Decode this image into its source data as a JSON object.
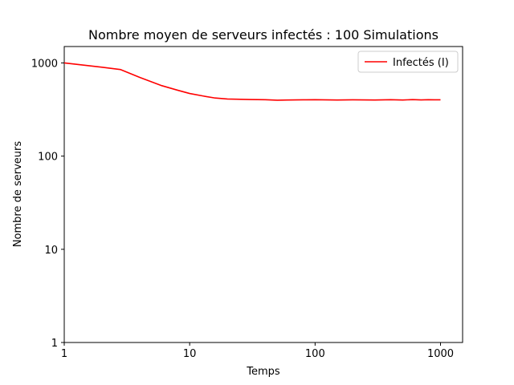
{
  "chart_data": {
    "type": "line",
    "title": "Nombre moyen de serveurs infectés : 100 Simulations",
    "xlabel": "Temps",
    "ylabel": "Nombre de serveurs",
    "xscale": "log",
    "yscale": "log",
    "xlim": [
      1,
      1500
    ],
    "ylim": [
      1,
      1500
    ],
    "x_ticks": [
      {
        "value": 1,
        "label": "1"
      },
      {
        "value": 10,
        "label": "10"
      },
      {
        "value": 100,
        "label": "100"
      },
      {
        "value": 1000,
        "label": "1000"
      }
    ],
    "y_ticks": [
      {
        "value": 1,
        "label": "1"
      },
      {
        "value": 10,
        "label": "10"
      },
      {
        "value": 100,
        "label": "100"
      },
      {
        "value": 1000,
        "label": "1000"
      }
    ],
    "grid": false,
    "legend": "top-right",
    "series": [
      {
        "name": "Infectés (I)",
        "color": "#ff0000",
        "x": [
          1,
          2,
          2.8,
          4,
          6,
          8,
          10,
          13,
          16,
          20,
          30,
          40,
          50,
          60,
          80,
          100,
          150,
          200,
          300,
          400,
          500,
          600,
          700,
          800,
          900,
          1000
        ],
        "y": [
          1000,
          900,
          850,
          700,
          570,
          510,
          470,
          440,
          420,
          410,
          405,
          403,
          398,
          400,
          402,
          403,
          400,
          402,
          400,
          403,
          400,
          404,
          401,
          403,
          402,
          402
        ]
      }
    ]
  }
}
